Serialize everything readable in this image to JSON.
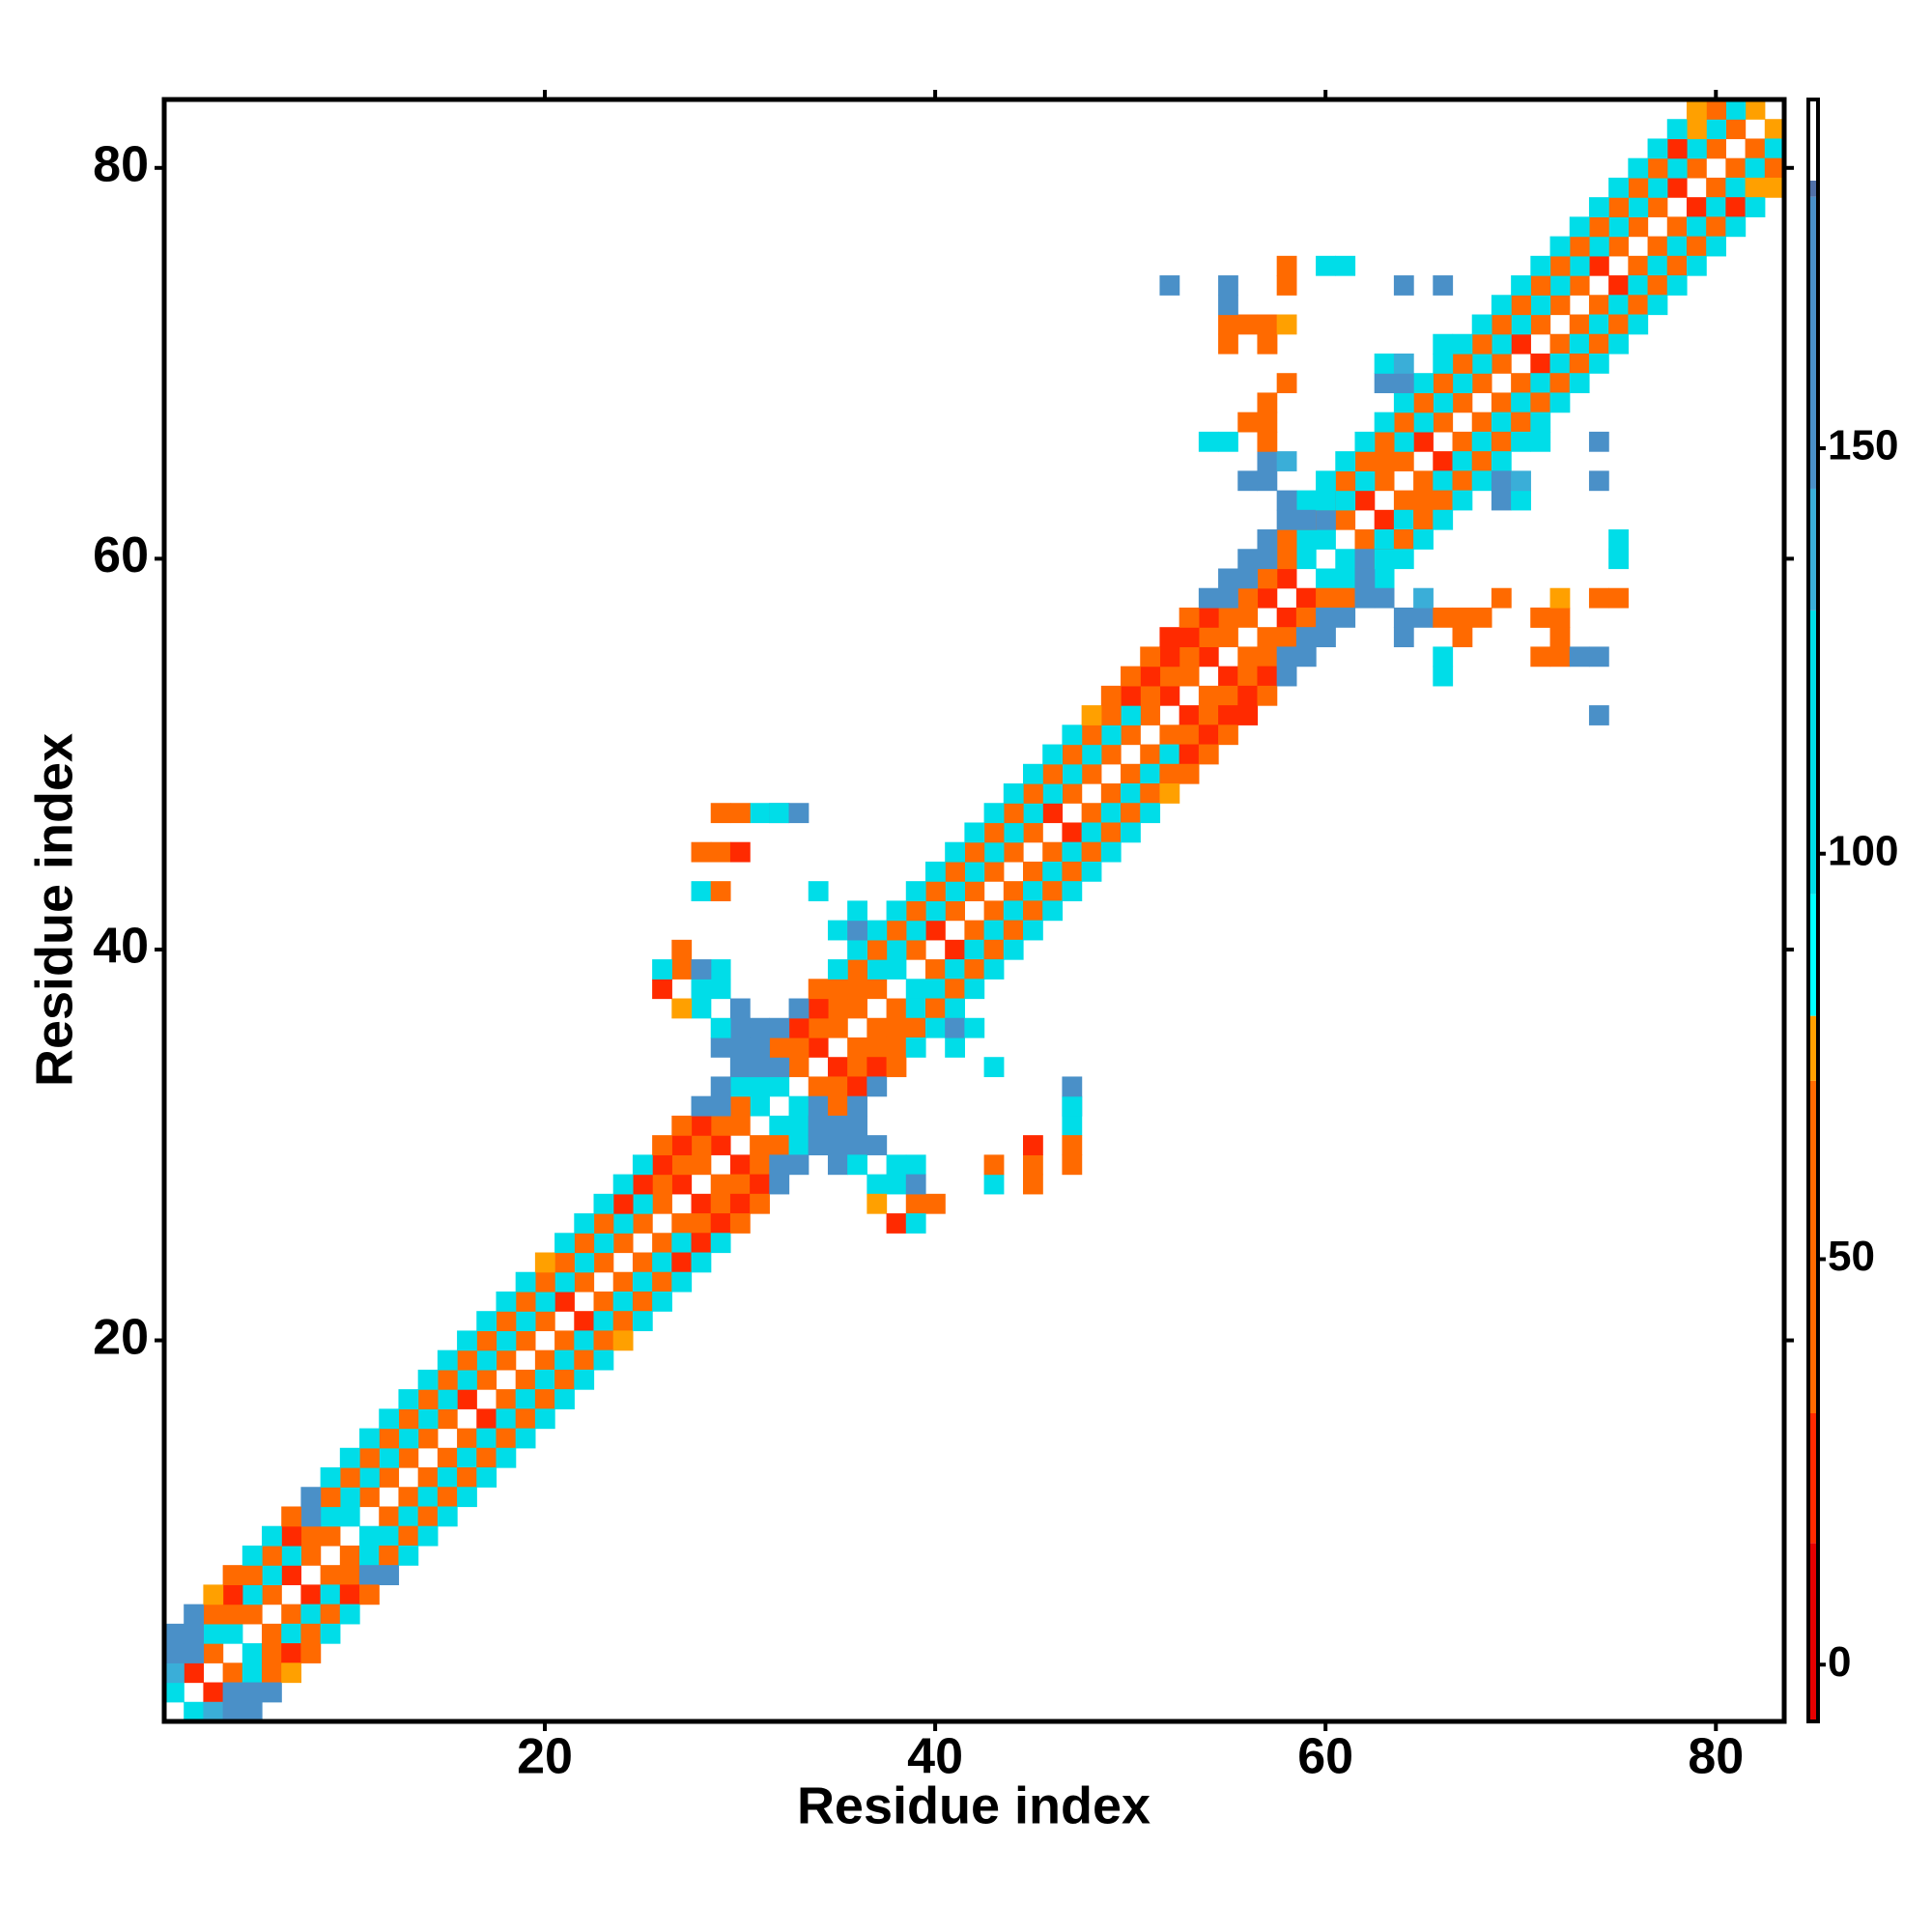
{
  "chart_data": {
    "type": "heatmap",
    "xlabel": "Residue index",
    "ylabel": "Residue index",
    "xlim": [
      0.5,
      83.5
    ],
    "ylim": [
      0.5,
      83.5
    ],
    "xticks": [
      20,
      40,
      60,
      80
    ],
    "yticks": [
      20,
      40,
      60,
      80
    ],
    "clim": [
      -7,
      193
    ],
    "cticks": [
      0,
      50,
      100,
      150
    ],
    "colorscale": [
      [
        -7,
        "#e60000"
      ],
      [
        15,
        "#ff2a00"
      ],
      [
        31,
        "#ff6a00"
      ],
      [
        72,
        "#ffa000"
      ],
      [
        80,
        "#00ffff"
      ],
      [
        95,
        "#00dde8"
      ],
      [
        130,
        "#3aaed8"
      ],
      [
        145,
        "#4a90c8"
      ],
      [
        181,
        "#5070a8"
      ],
      [
        183,
        "#ffffff"
      ]
    ],
    "diagonals": [
      {
        "offset": 1,
        "values": [
          110,
          20,
          45,
          110,
          45,
          40,
          20,
          40,
          45,
          110,
          40,
          45,
          40,
          45,
          40,
          20,
          40,
          45,
          40,
          40,
          20,
          45,
          40,
          40,
          45,
          40,
          20,
          40,
          20,
          45,
          110,
          110,
          40,
          20,
          40,
          45,
          40,
          110,
          40,
          20,
          40,
          45,
          40,
          40,
          40,
          20,
          45,
          40,
          40,
          45,
          40,
          20,
          40,
          20,
          40,
          45,
          20,
          20,
          110,
          110,
          40,
          20,
          40,
          45,
          20,
          40,
          45,
          40,
          40,
          20,
          45,
          40,
          40,
          20,
          40,
          45,
          40,
          20,
          40,
          45,
          40,
          75
        ]
      },
      {
        "offset": 2,
        "values": [
          140,
          150,
          110,
          40,
          110,
          110,
          110,
          40,
          110,
          110,
          110,
          110,
          110,
          110,
          110,
          110,
          110,
          110,
          100,
          110,
          110,
          110,
          110,
          110,
          110,
          40,
          40,
          40,
          40,
          40,
          110,
          150,
          40,
          40,
          40,
          40,
          110,
          110,
          110,
          110,
          110,
          110,
          110,
          110,
          110,
          110,
          110,
          110,
          110,
          110,
          40,
          40,
          40,
          40,
          40,
          40,
          40,
          40,
          110,
          150,
          110,
          110,
          40,
          110,
          110,
          110,
          110,
          110,
          110,
          110,
          110,
          110,
          110,
          110,
          110,
          110,
          110,
          110,
          110,
          110,
          110
        ]
      },
      {
        "offset": 3,
        "values": [
          150,
          150,
          40,
          20,
          40,
          40,
          20,
          150,
          40,
          40,
          45,
          40,
          40,
          40,
          45,
          40,
          40,
          40,
          45,
          40,
          40,
          40,
          40,
          20,
          20,
          20,
          20,
          20,
          150,
          110,
          150,
          40,
          20,
          20,
          40,
          40,
          40,
          45,
          40,
          40,
          40,
          40,
          40,
          40,
          40,
          45,
          40,
          40,
          40,
          20,
          20,
          20,
          20,
          20,
          150,
          150,
          150,
          40,
          40,
          20,
          40,
          40,
          45,
          40,
          40,
          40,
          40,
          40,
          40,
          40,
          40,
          40,
          40,
          40,
          40,
          40,
          40,
          20,
          75,
          40
        ]
      },
      {
        "offset": 4,
        "values": [
          150,
          150,
          75,
          40,
          110,
          110,
          40,
          150,
          110,
          110,
          110,
          110,
          110,
          110,
          110,
          110,
          110,
          110,
          110,
          75,
          110,
          110,
          110,
          110,
          110,
          40,
          40,
          150,
          150,
          150,
          150,
          150,
          150,
          40,
          110,
          110,
          110,
          110,
          110,
          110,
          110,
          110,
          110,
          110,
          110,
          110,
          110,
          75,
          40,
          40,
          40,
          20,
          40,
          150,
          150,
          150,
          150,
          150,
          110,
          110,
          110,
          110,
          110,
          110,
          110,
          110,
          110,
          110,
          110,
          110,
          110,
          110,
          110,
          110,
          110,
          110,
          110,
          110,
          75
        ]
      }
    ],
    "cells": [
      [
        29,
        35,
        150
      ],
      [
        30,
        35,
        160
      ],
      [
        30,
        36,
        150
      ],
      [
        31,
        36,
        155
      ],
      [
        29,
        36,
        110
      ],
      [
        28,
        37,
        110
      ],
      [
        28,
        38,
        100
      ],
      [
        27,
        37,
        75
      ],
      [
        27,
        39,
        40
      ],
      [
        29,
        38,
        110
      ],
      [
        30,
        34,
        155
      ],
      [
        31,
        34,
        150
      ],
      [
        26,
        38,
        20
      ],
      [
        27,
        40,
        40
      ],
      [
        29,
        39,
        110
      ],
      [
        30,
        37,
        150
      ],
      [
        26,
        39,
        110
      ],
      [
        28,
        39,
        150
      ],
      [
        35,
        41,
        110
      ],
      [
        36,
        41,
        150
      ],
      [
        36,
        42,
        110
      ],
      [
        34,
        43,
        110
      ],
      [
        28,
        45,
        40
      ],
      [
        29,
        45,
        40
      ],
      [
        29,
        47,
        40
      ],
      [
        31,
        47,
        110
      ],
      [
        32,
        47,
        150
      ],
      [
        43,
        28,
        110
      ],
      [
        43,
        29,
        40
      ],
      [
        47,
        30,
        40
      ],
      [
        47,
        32,
        110
      ],
      [
        47,
        33,
        150
      ],
      [
        45,
        30,
        20
      ],
      [
        56,
        64,
        150
      ],
      [
        57,
        64,
        160
      ],
      [
        57,
        65,
        150
      ],
      [
        58,
        63,
        150
      ],
      [
        58,
        65,
        140
      ],
      [
        55,
        66,
        110
      ],
      [
        54,
        66,
        100
      ],
      [
        56,
        67,
        40
      ],
      [
        57,
        68,
        40
      ],
      [
        58,
        69,
        40
      ],
      [
        59,
        62,
        150
      ],
      [
        60,
        63,
        110
      ],
      [
        63,
        69,
        150
      ],
      [
        64,
        69,
        150
      ],
      [
        63,
        70,
        110
      ],
      [
        64,
        70,
        140
      ],
      [
        66,
        71,
        110
      ],
      [
        57,
        71,
        40
      ],
      [
        58,
        75,
        40
      ],
      [
        60,
        75,
        110
      ],
      [
        61,
        75,
        110
      ],
      [
        64,
        74,
        150
      ],
      [
        66,
        74,
        150
      ],
      [
        55,
        72,
        40
      ],
      [
        56,
        72,
        40
      ],
      [
        55,
        71,
        40
      ],
      [
        66,
        57,
        40
      ],
      [
        67,
        57,
        40
      ],
      [
        71,
        57,
        40
      ],
      [
        72,
        57,
        40
      ],
      [
        73,
        55,
        150
      ],
      [
        74,
        55,
        150
      ],
      [
        74,
        52,
        150
      ],
      [
        74,
        58,
        40
      ],
      [
        72,
        58,
        75
      ]
    ]
  }
}
